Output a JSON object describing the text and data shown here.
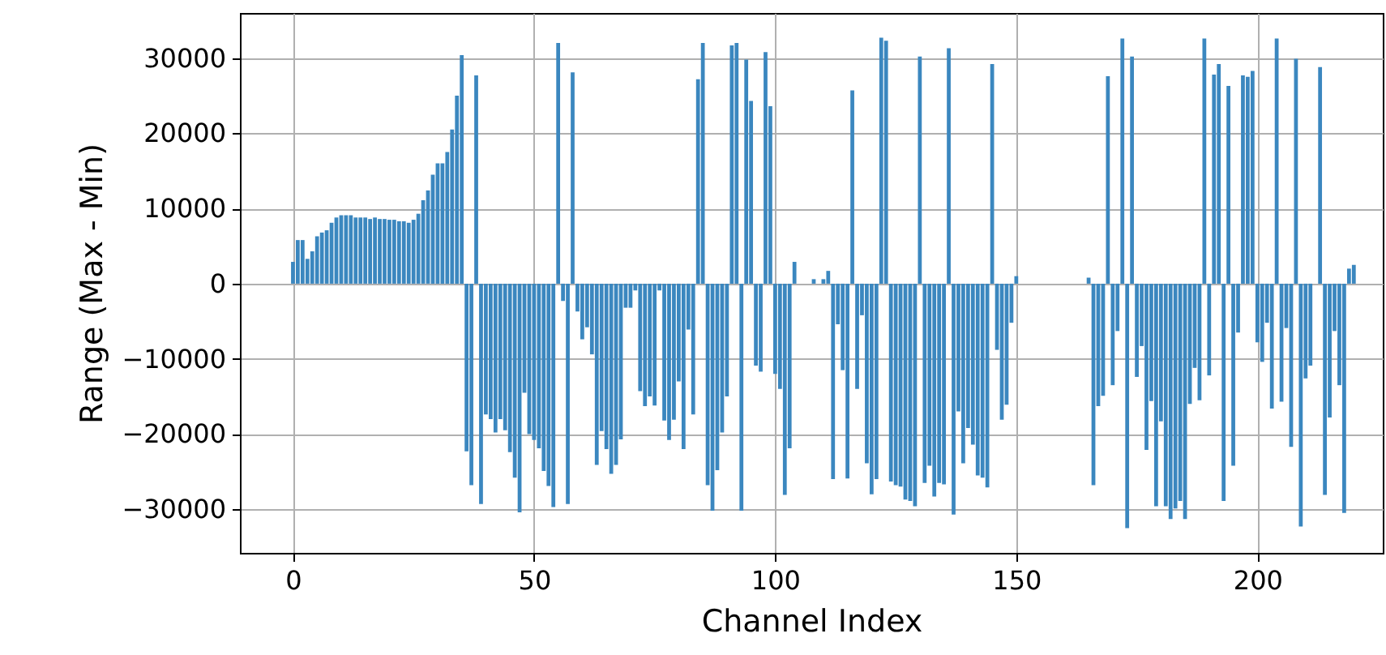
{
  "chart_data": {
    "type": "bar",
    "xlabel": "Channel Index",
    "ylabel": "Range (Max - Min)",
    "color": "#3b87bf",
    "x": [
      0,
      1,
      2,
      3,
      4,
      5,
      6,
      7,
      8,
      9,
      10,
      11,
      12,
      13,
      14,
      15,
      16,
      17,
      18,
      19,
      20,
      21,
      22,
      23,
      24,
      25,
      26,
      27,
      28,
      29,
      30,
      31,
      32,
      33,
      34,
      35,
      36,
      37,
      38,
      39,
      40,
      41,
      42,
      43,
      44,
      45,
      46,
      47,
      48,
      49,
      50,
      51,
      52,
      53,
      54,
      55,
      56,
      57,
      58,
      59,
      60,
      61,
      62,
      63,
      64,
      65,
      66,
      67,
      68,
      69,
      70,
      71,
      72,
      73,
      74,
      75,
      76,
      77,
      78,
      79,
      80,
      81,
      82,
      83,
      84,
      85,
      86,
      87,
      88,
      89,
      90,
      91,
      92,
      93,
      94,
      95,
      96,
      97,
      98,
      99,
      100,
      101,
      102,
      103,
      104,
      105,
      106,
      107,
      108,
      109,
      110,
      111,
      112,
      113,
      114,
      115,
      116,
      117,
      118,
      119,
      120,
      121,
      122,
      123,
      124,
      125,
      126,
      127,
      128,
      129,
      130,
      131,
      132,
      133,
      134,
      135,
      136,
      137,
      138,
      139,
      140,
      141,
      142,
      143,
      144,
      145,
      146,
      147,
      148,
      149,
      150,
      151,
      152,
      153,
      154,
      155,
      156,
      157,
      158,
      159,
      160,
      161,
      162,
      163,
      164,
      165,
      166,
      167,
      168,
      169,
      170,
      171,
      172,
      173,
      174,
      175,
      176,
      177,
      178,
      179,
      180,
      181,
      182,
      183,
      184,
      185,
      186,
      187,
      188,
      189,
      190,
      191,
      192,
      193,
      194,
      195,
      196,
      197,
      198,
      199,
      200,
      201,
      202,
      203,
      204,
      205,
      206,
      207,
      208,
      209,
      210,
      211,
      212,
      213,
      214,
      215,
      216,
      217,
      218,
      219,
      220
    ],
    "values": [
      2900,
      5800,
      5800,
      3300,
      4300,
      6300,
      6800,
      7100,
      8100,
      8800,
      9100,
      9100,
      9100,
      8800,
      8800,
      8800,
      8600,
      8800,
      8600,
      8600,
      8500,
      8500,
      8300,
      8300,
      8100,
      8500,
      9300,
      11100,
      12400,
      14500,
      16000,
      16000,
      17500,
      20500,
      25000,
      30400,
      -22300,
      -26800,
      27700,
      -29300,
      -17400,
      -18000,
      -19800,
      -18000,
      -19500,
      -22400,
      -25800,
      -30400,
      -14500,
      -20000,
      -20800,
      -21900,
      -24900,
      -26900,
      -29700,
      32000,
      -2300,
      -29300,
      28100,
      -3700,
      -7400,
      -5800,
      -9400,
      -24100,
      -19600,
      -22000,
      -25300,
      -24100,
      -20700,
      -3200,
      -3200,
      -900,
      -14300,
      -16300,
      -15000,
      -16200,
      -900,
      -18200,
      -20800,
      -18100,
      -13000,
      -22000,
      -6100,
      -17400,
      27200,
      32000,
      -26800,
      -30200,
      -24800,
      -19800,
      -15000,
      31700,
      32000,
      -30200,
      29800,
      24300,
      -10900,
      -11700,
      30800,
      23600,
      -12000,
      -14000,
      -28100,
      -21900,
      2900,
      0,
      0,
      0,
      600,
      0,
      600,
      1700,
      -26000,
      -5400,
      -11500,
      -25900,
      25700,
      -14000,
      -4200,
      -23900,
      -28000,
      -26000,
      32700,
      32300,
      -26300,
      -26800,
      -27000,
      -28700,
      -28900,
      -29600,
      30200,
      -26500,
      -24200,
      -28300,
      -26500,
      -26700,
      31300,
      -30700,
      -17000,
      -23900,
      -19200,
      -21400,
      -25500,
      -25800,
      -27100,
      29200,
      -8800,
      -18100,
      -16100,
      -5200,
      1000,
      0,
      0,
      0,
      0,
      0,
      0,
      0,
      0,
      0,
      0,
      0,
      0,
      0,
      0,
      800,
      -26800,
      -16300,
      -14900,
      27600,
      -13500,
      -6300,
      32600,
      -32500,
      30200,
      -12400,
      -8300,
      -22100,
      -15600,
      -29600,
      -18300,
      -29600,
      -31300,
      -29900,
      -28900,
      -31300,
      -16000,
      -11200,
      -15500,
      32600,
      -12200,
      27800,
      29200,
      -28900,
      26300,
      -24200,
      -6500,
      27700,
      27500,
      28300,
      -7800,
      -10400,
      -5200,
      -16600,
      32600,
      -15700,
      -5900,
      -21700,
      29900,
      -32300,
      -12600,
      -10900,
      0,
      28800,
      -28100,
      -17800,
      -6300,
      -13500,
      -30500,
      2000,
      2500
    ],
    "xlim": [
      -11,
      226
    ],
    "ylim": [
      -35800,
      36000
    ],
    "xticks": [
      0,
      50,
      100,
      150,
      200
    ],
    "yticks": [
      -30000,
      -20000,
      -10000,
      0,
      10000,
      20000,
      30000
    ],
    "grid": true
  }
}
